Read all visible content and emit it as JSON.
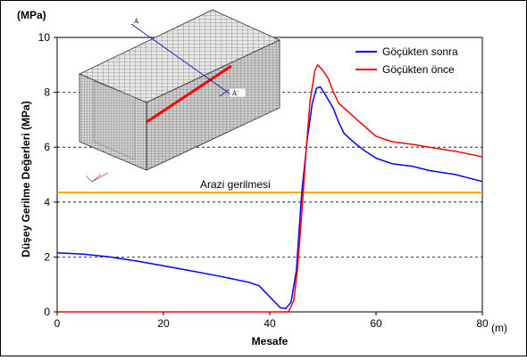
{
  "chart_data": {
    "type": "line",
    "ylabel": "Düşey Gerilme Değerleri (MPa)",
    "y_unit": "(MPa)",
    "xlabel": "Mesafe",
    "x_unit": "(m)",
    "xlim": [
      0,
      80
    ],
    "ylim": [
      0,
      10
    ],
    "x_ticks": [
      0,
      20,
      40,
      60,
      80
    ],
    "y_ticks": [
      0,
      2,
      4,
      6,
      8,
      10
    ],
    "dashed_gridlines_y": [
      2,
      4,
      6,
      8
    ],
    "legend_position": "top-right",
    "series": [
      {
        "name": "Göçükten sonra",
        "color": "#0000ff",
        "points": [
          [
            0,
            2.15
          ],
          [
            5,
            2.1
          ],
          [
            10,
            2.0
          ],
          [
            15,
            1.85
          ],
          [
            20,
            1.68
          ],
          [
            25,
            1.5
          ],
          [
            30,
            1.32
          ],
          [
            33,
            1.2
          ],
          [
            36,
            1.08
          ],
          [
            38,
            0.95
          ],
          [
            40,
            0.55
          ],
          [
            41,
            0.35
          ],
          [
            42,
            0.15
          ],
          [
            43,
            0.12
          ],
          [
            44,
            0.35
          ],
          [
            45,
            1.5
          ],
          [
            46,
            4.3
          ],
          [
            47,
            6.2
          ],
          [
            48,
            7.6
          ],
          [
            48.8,
            8.15
          ],
          [
            49.5,
            8.2
          ],
          [
            50.5,
            7.9
          ],
          [
            52,
            7.4
          ],
          [
            53,
            6.9
          ],
          [
            54,
            6.5
          ],
          [
            56,
            6.15
          ],
          [
            58,
            5.85
          ],
          [
            60,
            5.6
          ],
          [
            63,
            5.4
          ],
          [
            67,
            5.3
          ],
          [
            70,
            5.15
          ],
          [
            75,
            5.0
          ],
          [
            80,
            4.75
          ]
        ]
      },
      {
        "name": "Göçükten önce",
        "color": "#ff0000",
        "points": [
          [
            0,
            0
          ],
          [
            43.5,
            0
          ],
          [
            44.5,
            0.4
          ],
          [
            45.2,
            1.5
          ],
          [
            46,
            3.5
          ],
          [
            46.8,
            5.8
          ],
          [
            47.6,
            7.7
          ],
          [
            48.5,
            8.8
          ],
          [
            49,
            9.0
          ],
          [
            50,
            8.8
          ],
          [
            51,
            8.5
          ],
          [
            52,
            8.0
          ],
          [
            53,
            7.6
          ],
          [
            55,
            7.25
          ],
          [
            57,
            6.9
          ],
          [
            60,
            6.4
          ],
          [
            63,
            6.2
          ],
          [
            67,
            6.1
          ],
          [
            70,
            6.0
          ],
          [
            75,
            5.85
          ],
          [
            80,
            5.65
          ]
        ]
      }
    ],
    "reference_line": {
      "label": "Arazi gerilmesi",
      "y": 4.35,
      "color": "#ffa500"
    },
    "inset_labels": [
      "A",
      "A'"
    ]
  }
}
